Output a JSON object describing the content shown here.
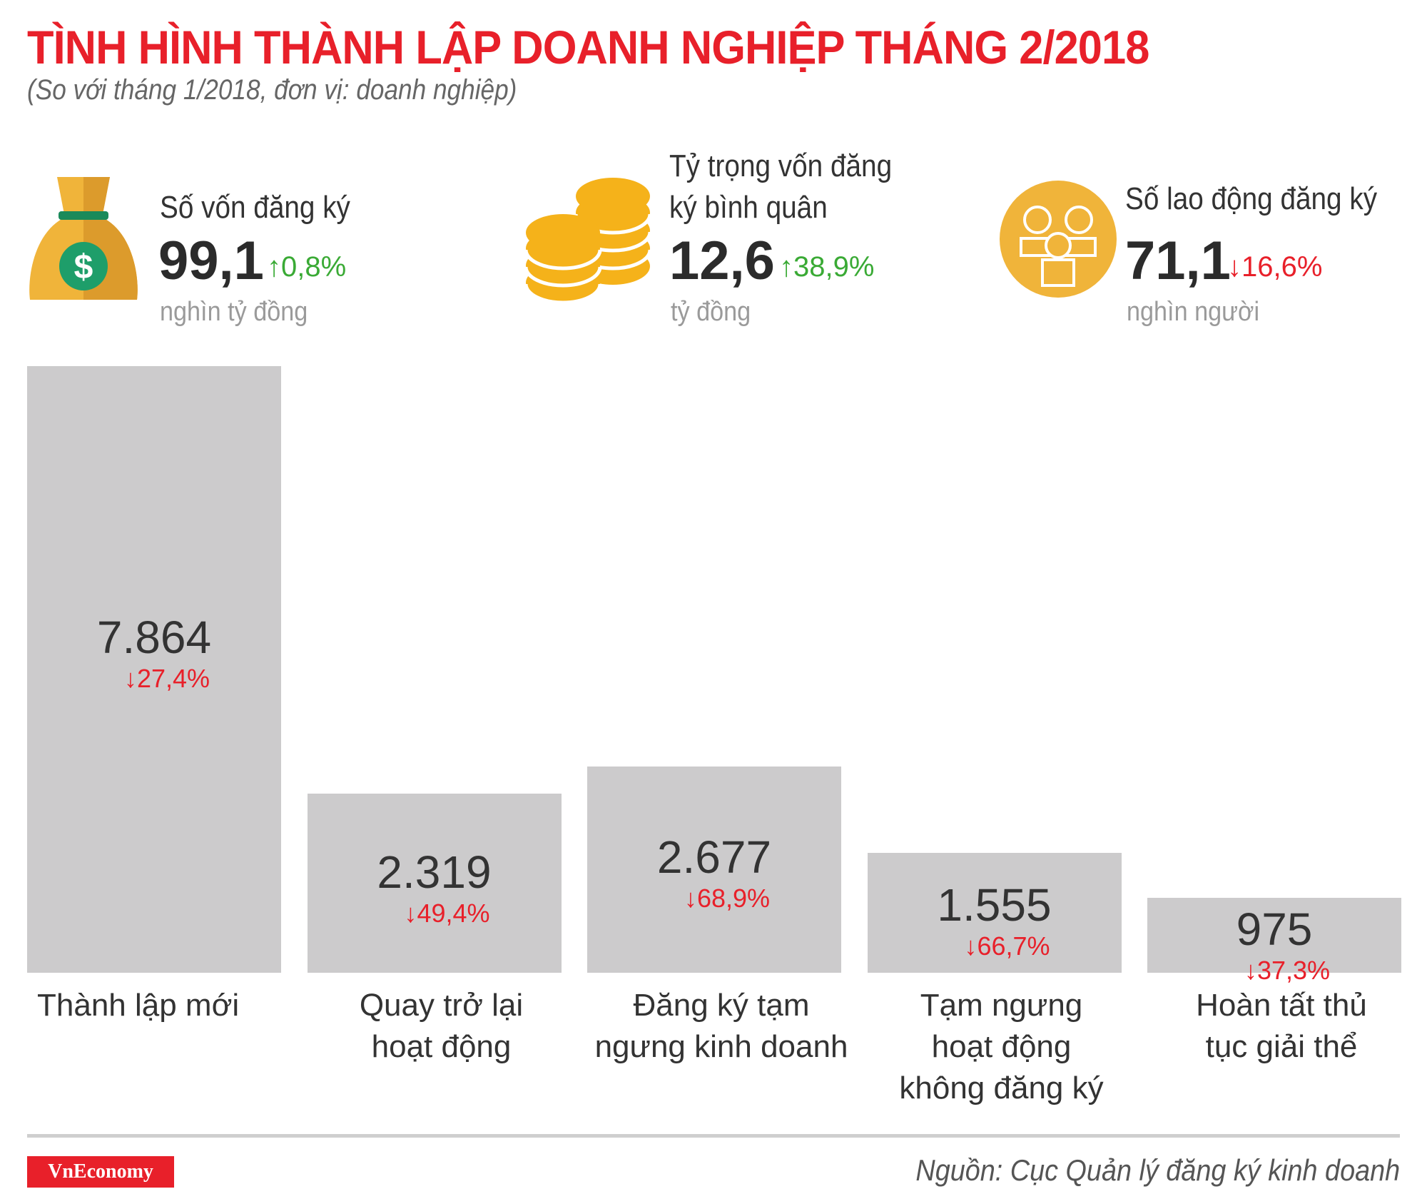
{
  "header": {
    "title": "TÌNH HÌNH THÀNH LẬP DOANH NGHIỆP THÁNG 2/2018",
    "subtitle": "(So với tháng 1/2018, đơn vị: doanh nghiệp)"
  },
  "stats": [
    {
      "icon": "money-bag-icon",
      "title_lines": [
        "Số vốn đăng ký"
      ],
      "value": "99,1",
      "change": "↑0,8%",
      "direction": "up",
      "unit": "nghìn tỷ đồng"
    },
    {
      "icon": "coins-icon",
      "title_lines": [
        "Tỷ trọng vốn đăng",
        "ký bình quân"
      ],
      "value": "12,6",
      "change": "↑38,9%",
      "direction": "up",
      "unit": "tỷ đồng"
    },
    {
      "icon": "people-icon",
      "title_lines": [
        "Số lao động đăng ký"
      ],
      "value": "71,1",
      "change": "↓16,6%",
      "direction": "down",
      "unit": "nghìn người"
    }
  ],
  "colors": {
    "title": "#e8202a",
    "up": "#3aaa35",
    "down": "#e8202a",
    "bar": "#cccbcc",
    "icon": "#f5b21a"
  },
  "chart_data": {
    "type": "bar",
    "categories": [
      "Thành lập mới",
      "Quay trở lại hoạt động",
      "Đăng ký tạm ngưng kinh doanh",
      "Tạm ngưng hoạt động không đăng ký",
      "Hoàn tất thủ tục giải thể"
    ],
    "category_lines": [
      [
        "Thành lập mới"
      ],
      [
        "Quay trở lại",
        "hoạt động"
      ],
      [
        "Đăng ký tạm",
        "ngưng kinh doanh"
      ],
      [
        "Tạm ngưng",
        "hoạt động",
        "không đăng ký"
      ],
      [
        "Hoàn tất thủ",
        "tục giải thể"
      ]
    ],
    "values": [
      7864,
      2319,
      2677,
      1555,
      975
    ],
    "value_labels": [
      "7.864",
      "2.319",
      "2.677",
      "1.555",
      "975"
    ],
    "changes": [
      "↓27,4%",
      "↓49,4%",
      "↓68,9%",
      "↓66,7%",
      "↓37,3%"
    ],
    "ylim": [
      0,
      7864
    ],
    "grid": false
  },
  "footer": {
    "logo": "VnEconomy",
    "source": "Nguồn: Cục Quản lý đăng ký kinh doanh"
  }
}
